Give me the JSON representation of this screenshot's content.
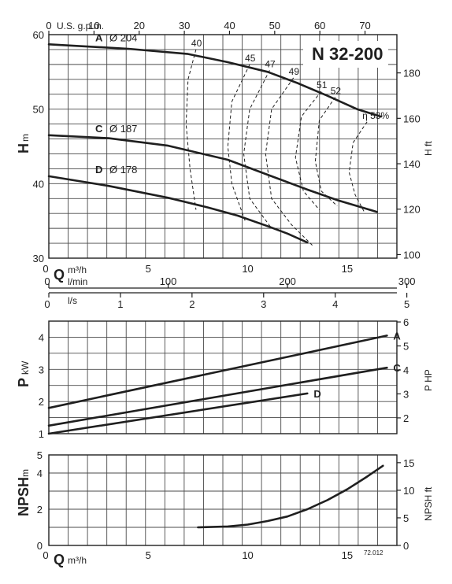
{
  "model": "N 32-200",
  "code": "72.012",
  "head_chart": {
    "ylabel_main": "H",
    "ylabel_unit": "m",
    "right_label": "H ft",
    "top_label": "U.S. g.p.m.",
    "y_ticks": [
      "30",
      "40",
      "50",
      "60"
    ],
    "ft_ticks": [
      "100",
      "120",
      "140",
      "160",
      "180"
    ],
    "gpm_ticks": [
      "0",
      "10",
      "20",
      "30",
      "40",
      "50",
      "60",
      "70"
    ],
    "diam_symbol": "Ø"
  },
  "flow_axes": {
    "q_main": "Q",
    "q_unit": "m³/h",
    "q_ticks": [
      "0",
      "5",
      "10",
      "15"
    ],
    "lmin_label": "l/min",
    "lmin_ticks": [
      "0",
      "100",
      "200",
      "300"
    ],
    "ls_label": "l/s",
    "ls_ticks": [
      "0",
      "1",
      "2",
      "3",
      "4",
      "5"
    ]
  },
  "power_chart": {
    "ylabel_main": "P",
    "ylabel_unit": "kW",
    "right_label": "P HP",
    "y_ticks": [
      "1",
      "2",
      "3",
      "4"
    ],
    "hp_ticks": [
      "2",
      "3",
      "4",
      "5",
      "6"
    ]
  },
  "npsh_chart": {
    "ylabel_main": "NPSH",
    "ylabel_unit": "m",
    "right_label": "NPSH ft",
    "y_ticks": [
      "0",
      "2",
      "4",
      "5"
    ],
    "ft_ticks": [
      "0",
      "5",
      "10",
      "15"
    ],
    "q_main": "Q",
    "q_unit": "m³/h",
    "q_ticks": [
      "0",
      "5",
      "10",
      "15"
    ]
  },
  "chart_data": [
    {
      "type": "line",
      "xlabel": "Q m³/h",
      "ylabel": "H m",
      "xlim": [
        0,
        17.5
      ],
      "ylim": [
        30,
        60
      ],
      "grid": true,
      "series": [
        {
          "name": "A",
          "diameter": "204",
          "x": [
            0,
            4,
            7,
            9,
            11,
            12.5,
            14,
            15.5,
            16.7
          ],
          "y": [
            58.7,
            58.1,
            57.4,
            56.3,
            55,
            53.5,
            51.8,
            50,
            49
          ]
        },
        {
          "name": "C",
          "diameter": "187",
          "x": [
            0,
            3,
            6,
            9,
            11,
            13,
            14.5,
            16.5
          ],
          "y": [
            46.5,
            46.1,
            45.1,
            43.2,
            41.2,
            39.2,
            37.8,
            36.2
          ]
        },
        {
          "name": "D",
          "diameter": "178",
          "x": [
            0,
            3,
            6,
            8,
            9.5,
            11,
            12,
            13
          ],
          "y": [
            41,
            39.7,
            38.1,
            36.8,
            35.7,
            34.3,
            33.3,
            32.1
          ]
        }
      ],
      "efficiency_curves": [
        {
          "label": "40",
          "x": [
            7.4,
            7.0,
            6.9,
            7.1,
            7.4
          ],
          "y": [
            58,
            54,
            48,
            42,
            36.5
          ]
        },
        {
          "label": "45",
          "x": [
            10.1,
            9.2,
            9.0,
            9.2,
            9.9
          ],
          "y": [
            56,
            51,
            45,
            40,
            34.8
          ]
        },
        {
          "label": "47",
          "x": [
            11.1,
            10.1,
            9.8,
            10.1,
            11.2
          ],
          "y": [
            55.2,
            50,
            44,
            38,
            34
          ]
        },
        {
          "label": "49",
          "x": [
            12.3,
            11.2,
            10.9,
            11.2,
            12.2,
            13.3
          ],
          "y": [
            54.2,
            50,
            44,
            38,
            34.5,
            31.6
          ]
        },
        {
          "label": "51",
          "x": [
            13.7,
            12.7,
            12.4,
            12.8,
            13.6
          ],
          "y": [
            52.4,
            49,
            43.5,
            39,
            36.5
          ]
        },
        {
          "label": "52",
          "x": [
            14.4,
            13.6,
            13.4,
            13.7,
            14.5
          ],
          "y": [
            51.6,
            48.5,
            43,
            39,
            37
          ]
        },
        {
          "label": "η 53%",
          "x": [
            16.0,
            15.3,
            15.1,
            15.4,
            15.9
          ],
          "y": [
            48.3,
            45.5,
            41.5,
            38.5,
            36
          ]
        }
      ],
      "labels": {
        "A": "A",
        "C": "C",
        "D": "D"
      }
    },
    {
      "type": "line",
      "xlabel": "Q m³/h",
      "ylabel": "P kW",
      "xlim": [
        0,
        17.5
      ],
      "ylim": [
        1,
        4.5
      ],
      "grid": true,
      "series": [
        {
          "name": "A",
          "x": [
            0,
            17
          ],
          "y": [
            1.8,
            4.05
          ]
        },
        {
          "name": "C",
          "x": [
            0,
            17
          ],
          "y": [
            1.25,
            3.05
          ]
        },
        {
          "name": "D",
          "x": [
            0,
            13
          ],
          "y": [
            1.0,
            2.25
          ]
        }
      ]
    },
    {
      "type": "line",
      "xlabel": "Q m³/h",
      "ylabel": "NPSH m",
      "xlim": [
        0,
        17.5
      ],
      "ylim": [
        0,
        5
      ],
      "grid": true,
      "series": [
        {
          "x": [
            7.5,
            9,
            10,
            11,
            12,
            13,
            14,
            15,
            16,
            16.8
          ],
          "y": [
            1.0,
            1.05,
            1.15,
            1.35,
            1.6,
            2.0,
            2.5,
            3.1,
            3.8,
            4.4
          ]
        }
      ]
    }
  ]
}
